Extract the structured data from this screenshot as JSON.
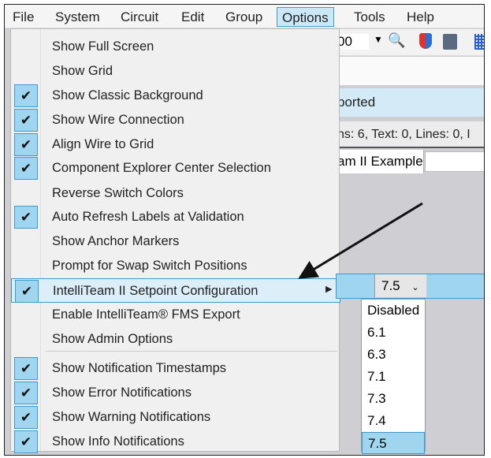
{
  "menubar": {
    "items": [
      "File",
      "System",
      "Circuit",
      "Edit",
      "Group",
      "Options",
      "Tools",
      "Help"
    ],
    "active": "Options"
  },
  "background": {
    "zoom_value": "00",
    "status_text": "ported",
    "stats_text": "ns: 6,  Text: 0,  Lines: 0,  I",
    "tab_label": "am II Example"
  },
  "options_menu": {
    "items": [
      {
        "label": "Show Full Screen",
        "checked": false
      },
      {
        "label": "Show Grid",
        "checked": false
      },
      {
        "label": "Show Classic Background",
        "checked": true
      },
      {
        "label": "Show Wire Connection",
        "checked": true
      },
      {
        "label": "Align Wire to Grid",
        "checked": true
      },
      {
        "label": "Component Explorer Center Selection",
        "checked": true
      },
      {
        "label": "Reverse Switch Colors",
        "checked": false
      },
      {
        "label": "Auto Refresh Labels at Validation",
        "checked": true
      },
      {
        "label": "Show Anchor Markers",
        "checked": false
      },
      {
        "label": "Prompt for Swap Switch Positions",
        "checked": false
      },
      {
        "label": "IntelliTeam II Setpoint Configuration",
        "checked": true,
        "submenu": true
      },
      {
        "label": "Enable IntelliTeam® FMS Export",
        "checked": false
      },
      {
        "label": "Show Admin Options",
        "checked": false
      },
      {
        "label": "Show Notification Timestamps",
        "checked": true
      },
      {
        "label": "Show Error Notifications",
        "checked": true
      },
      {
        "label": "Show Warning Notifications",
        "checked": true
      },
      {
        "label": "Show Info Notifications",
        "checked": true
      }
    ],
    "check_glyph": "✔"
  },
  "setpoint": {
    "selected": "7.5",
    "options": [
      "Disabled",
      "6.1",
      "6.3",
      "7.1",
      "7.3",
      "7.4",
      "7.5"
    ]
  },
  "colors": {
    "highlight": "#9fd5ee",
    "border": "#3a9bd0"
  }
}
